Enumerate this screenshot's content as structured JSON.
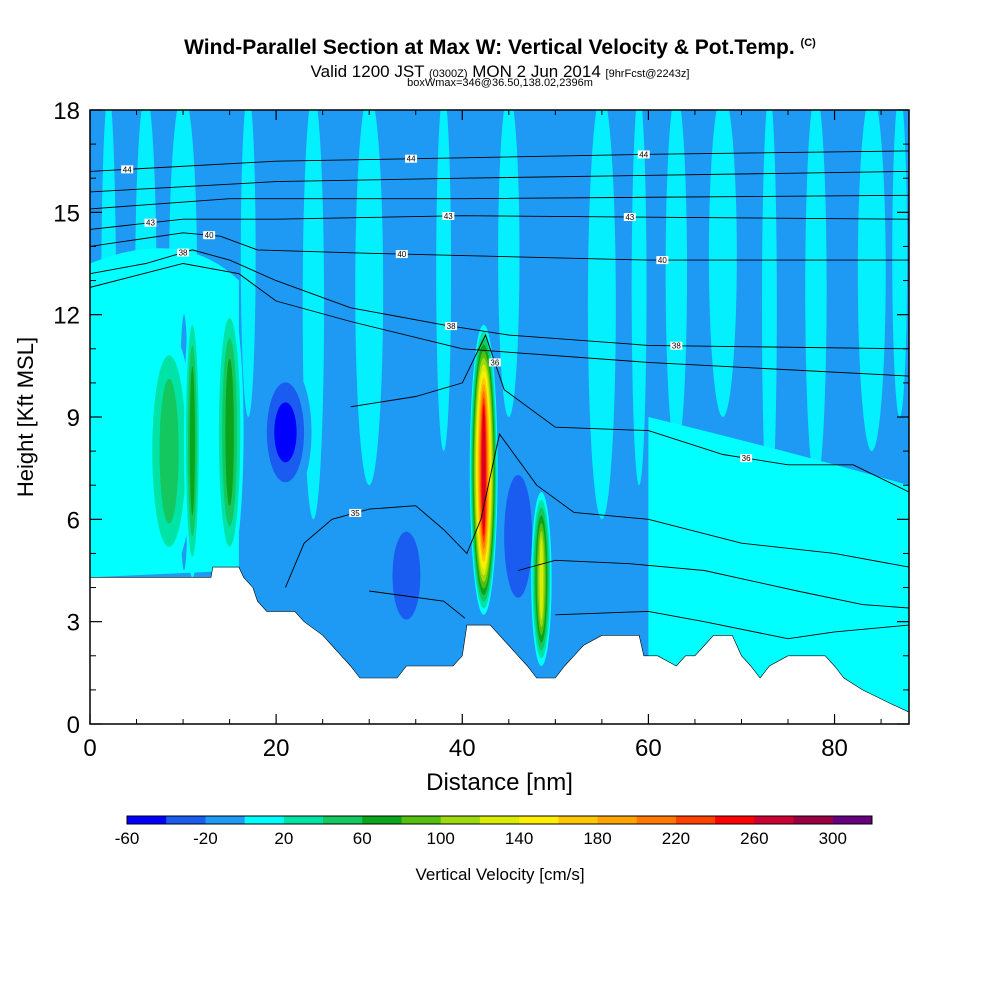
{
  "title": {
    "main": "Wind-Parallel Section at Max W: Vertical Velocity & Pot.Temp.",
    "main_tag": "(C)",
    "valid_prefix": "Valid 1200 JST",
    "valid_utc": "(0300Z)",
    "valid_date": "MON 2 Jun 2014",
    "fcst": "[9hrFcst@2243z]",
    "box": "boxWmax=346@36.50,138.02,2396m"
  },
  "chart_data": {
    "type": "heatmap",
    "xlabel": "Distance [nm]",
    "ylabel": "Height [Kft MSL]",
    "xlim": [
      0,
      88
    ],
    "ylim": [
      0,
      18
    ],
    "xticks": [
      0,
      20,
      40,
      60,
      80
    ],
    "yticks": [
      0,
      3,
      6,
      9,
      12,
      15,
      18
    ],
    "colorbar": {
      "label": "Vertical Velocity [cm/s]",
      "ticks": [
        -60,
        -20,
        20,
        60,
        100,
        140,
        180,
        220,
        260,
        300
      ],
      "levels": [
        -60,
        -40,
        -20,
        0,
        20,
        40,
        60,
        80,
        100,
        120,
        140,
        160,
        180,
        200,
        220,
        240,
        260,
        280,
        300,
        320
      ],
      "colors": [
        "#0000ff",
        "#1a5cf0",
        "#1e9af5",
        "#00ffff",
        "#00e3a6",
        "#12c85f",
        "#0aa51a",
        "#55bf10",
        "#9ed80f",
        "#d9ed00",
        "#ffef00",
        "#ffc800",
        "#ffa500",
        "#ff7800",
        "#ff4000",
        "#ff0000",
        "#cc0033",
        "#990044",
        "#66007f"
      ]
    },
    "terrain_kft": [
      [
        0,
        4.3
      ],
      [
        11,
        4.3
      ],
      [
        13,
        4.3
      ],
      [
        13.2,
        4.6
      ],
      [
        16,
        4.6
      ],
      [
        16.5,
        4.3
      ],
      [
        17.5,
        4
      ],
      [
        18,
        3.6
      ],
      [
        19,
        3.3
      ],
      [
        22,
        3.3
      ],
      [
        23,
        3
      ],
      [
        25,
        2.6
      ],
      [
        26,
        2.3
      ],
      [
        27,
        2
      ],
      [
        28,
        1.7
      ],
      [
        29,
        1.35
      ],
      [
        33,
        1.35
      ],
      [
        34,
        1.7
      ],
      [
        39,
        1.7
      ],
      [
        40,
        2
      ],
      [
        40.5,
        2.9
      ],
      [
        43,
        2.9
      ],
      [
        44,
        2.6
      ],
      [
        45,
        2.3
      ],
      [
        46,
        2
      ],
      [
        47,
        1.7
      ],
      [
        48,
        1.35
      ],
      [
        50,
        1.35
      ],
      [
        51,
        1.7
      ],
      [
        52,
        2
      ],
      [
        53,
        2.3
      ],
      [
        55,
        2.6
      ],
      [
        59,
        2.6
      ],
      [
        59.5,
        2
      ],
      [
        61,
        2
      ],
      [
        63,
        1.7
      ],
      [
        64,
        2
      ],
      [
        65,
        2
      ],
      [
        66,
        2.3
      ],
      [
        67,
        2.6
      ],
      [
        69,
        2.6
      ],
      [
        70,
        2
      ],
      [
        71,
        1.7
      ],
      [
        72,
        1.35
      ],
      [
        73,
        1.7
      ],
      [
        75,
        2
      ],
      [
        79,
        2
      ],
      [
        80,
        1.7
      ],
      [
        81,
        1.35
      ],
      [
        83,
        1
      ],
      [
        86,
        0.6
      ],
      [
        88,
        0.35
      ]
    ],
    "updrafts": [
      {
        "x": 8.5,
        "width": 2.6,
        "bottom": 4.5,
        "top": 11.5,
        "w_max": 60
      },
      {
        "x": 11,
        "width": 0.9,
        "bottom": 4.3,
        "top": 12.3,
        "w_max": 80
      },
      {
        "x": 15,
        "width": 1.5,
        "bottom": 4.6,
        "top": 12.5,
        "w_max": 80
      },
      {
        "x": 42.3,
        "width": 1.5,
        "bottom": 3.2,
        "top": 11.7,
        "w_max": 280
      },
      {
        "x": 48.5,
        "width": 1.1,
        "bottom": 1.7,
        "top": 6.8,
        "w_max": 140
      }
    ],
    "downdrafts": [
      {
        "x": 21,
        "width": 2.8,
        "bottom": 6.5,
        "top": 10.6,
        "w_min": -60
      },
      {
        "x": 10.1,
        "width": 0.5,
        "bottom": 4.5,
        "top": 12.0,
        "w_min": -40
      },
      {
        "x": 34,
        "width": 2.5,
        "bottom": 2.2,
        "top": 6.5,
        "w_min": -40
      },
      {
        "x": 46,
        "width": 2.5,
        "bottom": 2.5,
        "top": 8.5,
        "w_min": -30
      }
    ],
    "theta_contours": [
      {
        "label": "44",
        "points": [
          [
            0,
            16.2
          ],
          [
            20,
            16.5
          ],
          [
            40,
            16.6
          ],
          [
            60,
            16.7
          ],
          [
            88,
            16.8
          ]
        ],
        "labels_at": [
          4,
          34.5,
          59.5
        ]
      },
      {
        "label": "",
        "points": [
          [
            0,
            15.6
          ],
          [
            20,
            15.9
          ],
          [
            40,
            16.0
          ],
          [
            88,
            16.2
          ]
        ]
      },
      {
        "label": "",
        "points": [
          [
            0,
            15.1
          ],
          [
            15,
            15.4
          ],
          [
            40,
            15.4
          ],
          [
            88,
            15.5
          ]
        ]
      },
      {
        "label": "43",
        "points": [
          [
            0,
            14.5
          ],
          [
            10,
            14.8
          ],
          [
            14,
            14.8
          ],
          [
            20,
            14.8
          ],
          [
            40,
            14.9
          ],
          [
            88,
            14.8
          ]
        ],
        "labels_at": [
          6.5,
          38.5,
          58
        ]
      },
      {
        "label": "40",
        "points": [
          [
            0,
            14.0
          ],
          [
            10,
            14.4
          ],
          [
            14,
            14.3
          ],
          [
            18,
            13.9
          ],
          [
            30,
            13.8
          ],
          [
            60,
            13.6
          ],
          [
            88,
            13.6
          ]
        ],
        "labels_at": [
          12.8,
          33.5,
          61.5
        ]
      },
      {
        "label": "38",
        "points": [
          [
            0,
            13.2
          ],
          [
            6,
            13.5
          ],
          [
            11,
            13.9
          ],
          [
            15,
            13.6
          ],
          [
            20,
            13.0
          ],
          [
            28,
            12.2
          ],
          [
            38,
            11.7
          ],
          [
            45,
            11.4
          ],
          [
            60,
            11.1
          ],
          [
            88,
            11.0
          ]
        ],
        "labels_at": [
          10,
          38.8,
          63
        ]
      },
      {
        "label": "",
        "points": [
          [
            0,
            12.8
          ],
          [
            10,
            13.5
          ],
          [
            16,
            13.2
          ],
          [
            20,
            12.4
          ],
          [
            28,
            11.8
          ],
          [
            40,
            11.0
          ],
          [
            60,
            10.6
          ],
          [
            88,
            10.2
          ]
        ]
      },
      {
        "label": "36",
        "points": [
          [
            28,
            9.3
          ],
          [
            35,
            9.6
          ],
          [
            40,
            10.0
          ],
          [
            42.5,
            11.4
          ],
          [
            44.5,
            9.8
          ],
          [
            50,
            8.7
          ],
          [
            60,
            8.6
          ],
          [
            68,
            7.9
          ],
          [
            75,
            7.6
          ],
          [
            82,
            7.6
          ],
          [
            88,
            6.8
          ]
        ],
        "labels_at": [
          43.5,
          70.5
        ]
      },
      {
        "label": "35",
        "points": [
          [
            21,
            4.0
          ],
          [
            23,
            5.3
          ],
          [
            26,
            6.0
          ],
          [
            30,
            6.3
          ],
          [
            35,
            6.4
          ],
          [
            38,
            5.7
          ],
          [
            40.5,
            5.0
          ],
          [
            42,
            6.0
          ],
          [
            44,
            8.5
          ],
          [
            48,
            7.0
          ],
          [
            52,
            6.2
          ],
          [
            60,
            6.0
          ],
          [
            70,
            5.3
          ],
          [
            80,
            5.0
          ],
          [
            88,
            4.6
          ]
        ],
        "labels_at": [
          28.5
        ]
      },
      {
        "label": "",
        "points": [
          [
            46,
            4.5
          ],
          [
            50,
            4.8
          ],
          [
            58,
            4.7
          ],
          [
            66,
            4.5
          ],
          [
            76,
            3.9
          ],
          [
            83,
            3.5
          ],
          [
            88,
            3.4
          ]
        ]
      },
      {
        "label": "",
        "points": [
          [
            30,
            3.9
          ],
          [
            38,
            3.6
          ],
          [
            40.3,
            3.1
          ]
        ]
      },
      {
        "label": "",
        "points": [
          [
            50,
            3.2
          ],
          [
            60,
            3.3
          ],
          [
            66,
            3.0
          ],
          [
            75,
            2.5
          ],
          [
            80,
            2.7
          ],
          [
            88,
            2.9
          ]
        ]
      }
    ]
  }
}
